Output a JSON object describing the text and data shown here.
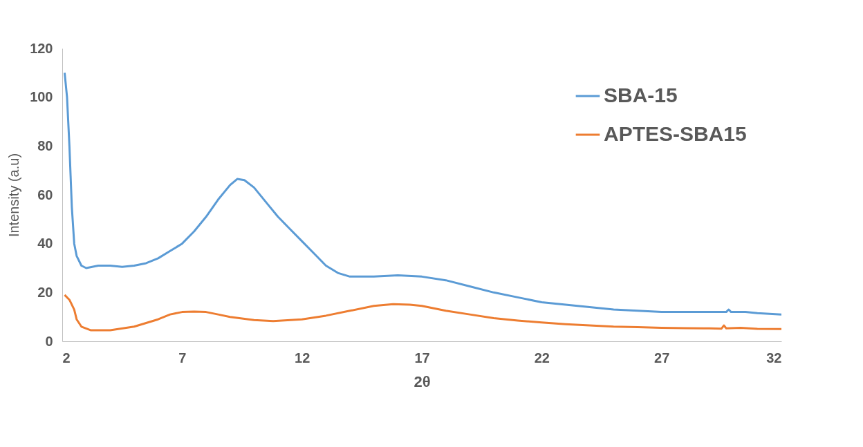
{
  "chart_data": {
    "type": "line",
    "xlabel": "2θ",
    "ylabel": "Intensity (a.u)",
    "xlim": [
      2,
      32
    ],
    "ylim": [
      0,
      120
    ],
    "xticks": [
      2,
      7,
      12,
      17,
      22,
      27,
      32
    ],
    "yticks": [
      0,
      20,
      40,
      60,
      80,
      100,
      120
    ],
    "grid": false,
    "legend": "top right",
    "marker": "none",
    "line_style": "solid",
    "series": [
      {
        "name": "SBA-15",
        "color": "#5b9bd5",
        "x": [
          2.1,
          2.2,
          2.3,
          2.4,
          2.5,
          2.6,
          2.8,
          3.0,
          3.5,
          4,
          4.5,
          5,
          5.5,
          6,
          6.5,
          7,
          7.5,
          8,
          8.5,
          9,
          9.3,
          9.6,
          10,
          10.5,
          11,
          11.5,
          12,
          12.5,
          13,
          13.5,
          14,
          15,
          16,
          17,
          18,
          19,
          20,
          21,
          22,
          23,
          24,
          25,
          26,
          27,
          28,
          29,
          29.7,
          29.8,
          29.9,
          30.5,
          31,
          32
        ],
        "values": [
          110,
          100,
          80,
          55,
          40,
          35,
          31,
          30,
          31,
          31,
          30.5,
          31,
          32,
          34,
          37,
          40,
          45,
          51,
          58,
          64,
          66.5,
          66,
          63,
          57,
          51,
          46,
          41,
          36,
          31,
          28,
          26.5,
          26.5,
          27,
          26.5,
          25,
          22.5,
          20,
          18,
          16,
          15,
          14,
          13,
          12.5,
          12,
          12,
          12,
          12,
          13,
          12,
          12,
          11.5,
          11
        ]
      },
      {
        "name": "APTES-SBA15",
        "color": "#ed7d31",
        "x": [
          2.1,
          2.3,
          2.5,
          2.6,
          2.8,
          3.2,
          4,
          5,
          6,
          6.5,
          7,
          7.5,
          8,
          8.5,
          9,
          10,
          10.8,
          12,
          13,
          14,
          15,
          15.8,
          16.5,
          17,
          18,
          19,
          20,
          21,
          22,
          23,
          24,
          25,
          26,
          27,
          28,
          29,
          29.5,
          29.6,
          29.7,
          30.3,
          31,
          32
        ],
        "values": [
          19,
          17,
          13,
          9,
          6,
          4.5,
          4.5,
          6,
          9,
          11,
          12,
          12.2,
          12,
          11,
          10,
          8.7,
          8.3,
          9,
          10.5,
          12.5,
          14.5,
          15.2,
          15,
          14.5,
          12.5,
          11,
          9.5,
          8.5,
          7.7,
          7,
          6.5,
          6,
          5.8,
          5.5,
          5.4,
          5.3,
          5.2,
          6.5,
          5.3,
          5.5,
          5.1,
          5
        ]
      }
    ]
  }
}
